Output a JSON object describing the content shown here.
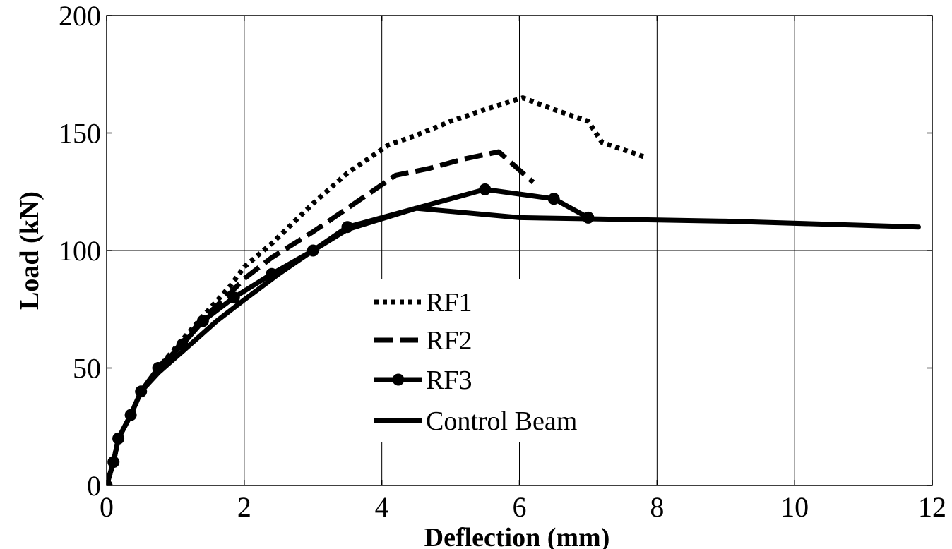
{
  "chart_data": {
    "type": "line",
    "title": "",
    "xlabel": "Deflection (mm)",
    "ylabel": "Load (kN)",
    "xlim": [
      0,
      12
    ],
    "ylim": [
      0,
      200
    ],
    "xticks": [
      0,
      2,
      4,
      6,
      8,
      10,
      12
    ],
    "yticks": [
      0,
      50,
      100,
      150,
      200
    ],
    "xtick_labels": [
      "0",
      "2",
      "4",
      "6",
      "8",
      "10",
      "12"
    ],
    "ytick_labels": [
      "0",
      "50",
      "100",
      "150",
      "200"
    ],
    "grid": true,
    "legend_position": "center",
    "line_color": "#000000",
    "series": [
      {
        "name": "RF1",
        "style": "dotted",
        "x": [
          0,
          0.1,
          0.17,
          0.35,
          0.5,
          0.75,
          1.1,
          1.4,
          1.8,
          2.0,
          2.4,
          3.0,
          3.5,
          4.1,
          4.5,
          5.0,
          5.5,
          6.05,
          6.5,
          7.0,
          7.2,
          7.8
        ],
        "y": [
          0,
          10,
          20,
          30,
          40,
          50,
          62,
          72,
          85,
          93,
          103,
          120,
          133,
          145,
          149,
          155,
          160,
          165,
          160,
          155,
          146,
          140
        ]
      },
      {
        "name": "RF2",
        "style": "dashed",
        "x": [
          0,
          0.1,
          0.17,
          0.35,
          0.5,
          0.75,
          1.1,
          1.4,
          1.8,
          2.0,
          2.4,
          3.0,
          3.5,
          4.2,
          4.7,
          5.2,
          5.7,
          6.2
        ],
        "y": [
          0,
          10,
          20,
          30,
          40,
          50,
          61,
          71,
          82,
          88,
          97,
          108,
          118,
          132,
          135,
          139,
          142,
          129
        ]
      },
      {
        "name": "RF3",
        "style": "solid-markers",
        "x": [
          0,
          0.1,
          0.17,
          0.35,
          0.5,
          0.75,
          1.1,
          1.4,
          1.85,
          2.4,
          3.0,
          3.5,
          5.5,
          6.5,
          7.0
        ],
        "y": [
          0,
          10,
          20,
          30,
          40,
          50,
          60,
          70,
          80,
          90,
          100,
          110,
          126,
          122,
          114
        ]
      },
      {
        "name": "Control Beam",
        "style": "solid",
        "x": [
          0,
          0.1,
          0.17,
          0.35,
          0.5,
          0.75,
          1.1,
          1.6,
          2.0,
          2.5,
          3.0,
          3.5,
          4.5,
          6.0,
          7.0,
          9.0,
          11.8
        ],
        "y": [
          0,
          10,
          20,
          30,
          40,
          48,
          57,
          70,
          79,
          90,
          100,
          109,
          118,
          114,
          113.5,
          112.5,
          110
        ]
      }
    ]
  }
}
